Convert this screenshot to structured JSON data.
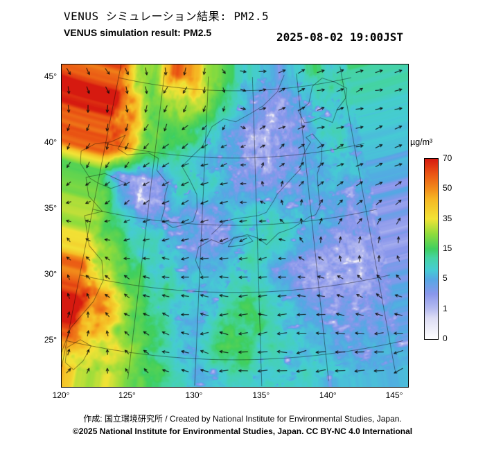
{
  "header": {
    "title_jp": "VENUS シミュレーション結果: PM2.5",
    "subtitle_en": "VENUS simulation result: PM2.5",
    "timestamp": "2025-08-02 19:00JST"
  },
  "colorbar": {
    "unit": "µg/m³",
    "ticks": [
      0,
      1,
      5,
      15,
      35,
      50,
      70
    ],
    "stops": [
      {
        "v": 0,
        "c": "#ffffff"
      },
      {
        "v": 0.7,
        "c": "#dcdcf4"
      },
      {
        "v": 1,
        "c": "#b7bcf0"
      },
      {
        "v": 3,
        "c": "#8a97ec"
      },
      {
        "v": 5,
        "c": "#55a8e4"
      },
      {
        "v": 8,
        "c": "#46ccd4"
      },
      {
        "v": 12,
        "c": "#45d4a4"
      },
      {
        "v": 15,
        "c": "#3fcf5f"
      },
      {
        "v": 25,
        "c": "#8fdc3c"
      },
      {
        "v": 35,
        "c": "#f2e336"
      },
      {
        "v": 45,
        "c": "#f6b623"
      },
      {
        "v": 50,
        "c": "#f28c1b"
      },
      {
        "v": 60,
        "c": "#ea5514"
      },
      {
        "v": 70,
        "c": "#d61a10"
      }
    ]
  },
  "map": {
    "lon_values": [
      120,
      125,
      130,
      135,
      140,
      145
    ],
    "lon_ticks": [
      "120°",
      "125°",
      "130°",
      "135°",
      "140°",
      "145°"
    ],
    "lat_values": [
      25,
      30,
      35,
      40,
      45
    ],
    "lat_ticks": [
      "25°",
      "30°",
      "35°",
      "40°",
      "45°"
    ],
    "extent": {
      "lon_min": 120,
      "lon_max": 146,
      "lat_min": 23,
      "lat_max": 46
    }
  },
  "chart_data": {
    "type": "heatmap",
    "title": "VENUS simulation result: PM2.5",
    "title_jp": "VENUS シミュレーション結果: PM2.5",
    "time": "2025-08-02 19:00JST",
    "unit": "µg/m³",
    "scale_ticks": [
      0,
      1,
      5,
      15,
      35,
      50,
      70
    ],
    "lon": [
      120,
      122,
      124,
      126,
      128,
      130,
      132,
      134,
      136,
      138,
      140,
      142,
      144,
      146
    ],
    "lat": [
      46,
      44,
      42,
      40,
      38,
      36,
      34,
      32,
      30,
      28,
      26,
      24
    ],
    "pm25": [
      [
        55,
        25,
        20,
        55,
        45,
        25,
        15,
        10,
        6,
        4,
        8,
        12,
        9,
        12
      ],
      [
        60,
        35,
        20,
        30,
        30,
        20,
        12,
        6,
        3,
        2,
        4,
        10,
        10,
        10
      ],
      [
        70,
        50,
        22,
        16,
        15,
        10,
        5,
        3,
        2,
        2,
        3,
        8,
        9,
        8
      ],
      [
        65,
        40,
        18,
        12,
        10,
        7,
        5,
        3,
        2,
        3,
        4,
        6,
        7,
        6
      ],
      [
        18,
        4,
        1,
        3,
        11,
        9,
        6,
        4,
        3,
        4,
        5,
        6,
        6,
        5
      ],
      [
        22,
        8,
        1,
        3,
        5,
        3,
        4,
        8,
        8,
        6,
        5,
        5,
        4,
        4
      ],
      [
        28,
        15,
        9,
        7,
        5,
        3,
        3,
        8,
        10,
        8,
        6,
        4,
        3,
        3
      ],
      [
        38,
        22,
        13,
        9,
        7,
        5,
        7,
        9,
        6,
        2,
        2,
        2,
        2,
        2
      ],
      [
        62,
        40,
        18,
        11,
        9,
        7,
        9,
        11,
        7,
        4,
        2,
        2,
        2,
        3
      ],
      [
        70,
        48,
        24,
        14,
        8,
        6,
        10,
        14,
        10,
        6,
        4,
        3,
        3,
        4
      ],
      [
        55,
        38,
        28,
        16,
        9,
        5,
        16,
        14,
        10,
        7,
        5,
        5,
        4,
        5
      ],
      [
        42,
        34,
        26,
        18,
        10,
        6,
        8,
        10,
        9,
        8,
        7,
        6,
        5,
        6
      ]
    ],
    "wind": {
      "lon": [
        120,
        124,
        128,
        132,
        136,
        140,
        144
      ],
      "lat": [
        46,
        42,
        38,
        34,
        30,
        26,
        23
      ],
      "uv": [
        [
          [
            2,
            -2
          ],
          [
            1,
            -3
          ],
          [
            -1,
            -3
          ],
          [
            1,
            -1
          ],
          [
            3,
            0
          ],
          [
            3,
            1
          ],
          [
            3,
            1
          ]
        ],
        [
          [
            1,
            -3
          ],
          [
            -1,
            -3
          ],
          [
            -2,
            -2
          ],
          [
            -1,
            -1
          ],
          [
            2,
            1
          ],
          [
            3,
            1
          ],
          [
            3,
            0
          ]
        ],
        [
          [
            -1,
            -2
          ],
          [
            -2,
            -2
          ],
          [
            -3,
            -2
          ],
          [
            -3,
            -1
          ],
          [
            0,
            1
          ],
          [
            2,
            2
          ],
          [
            3,
            1
          ]
        ],
        [
          [
            -1,
            0
          ],
          [
            -2,
            -1
          ],
          [
            -3,
            -1
          ],
          [
            -4,
            -1
          ],
          [
            -3,
            0
          ],
          [
            0,
            2
          ],
          [
            2,
            2
          ]
        ],
        [
          [
            -1,
            1
          ],
          [
            -2,
            1
          ],
          [
            -3,
            0
          ],
          [
            -4,
            0
          ],
          [
            -4,
            -1
          ],
          [
            -3,
            1
          ],
          [
            -1,
            2
          ]
        ],
        [
          [
            0,
            2
          ],
          [
            -1,
            1
          ],
          [
            -3,
            1
          ],
          [
            -4,
            0
          ],
          [
            -5,
            0
          ],
          [
            -5,
            0
          ],
          [
            -4,
            1
          ]
        ],
        [
          [
            1,
            2
          ],
          [
            0,
            1
          ],
          [
            -2,
            1
          ],
          [
            -4,
            0
          ],
          [
            -5,
            0
          ],
          [
            -5,
            -1
          ],
          [
            -5,
            0
          ]
        ]
      ]
    }
  },
  "coastlines": [
    [
      [
        119.7,
        23.6
      ],
      [
        120.1,
        26.0
      ],
      [
        121.5,
        28.3
      ],
      [
        122.0,
        30.0
      ],
      [
        121.6,
        31.4
      ],
      [
        120.3,
        32.3
      ],
      [
        119.4,
        34.4
      ],
      [
        120.9,
        35.0
      ],
      [
        119.4,
        35.9
      ],
      [
        118.8,
        37.2
      ],
      [
        120.5,
        37.8
      ],
      [
        122.6,
        37.4
      ],
      [
        121.3,
        36.8
      ],
      [
        120.0,
        37.0
      ],
      [
        119.2,
        37.2
      ],
      [
        118.0,
        38.1
      ],
      [
        117.8,
        39.0
      ],
      [
        119.0,
        39.8
      ],
      [
        120.5,
        40.2
      ],
      [
        121.8,
        40.9
      ],
      [
        121.3,
        39.8
      ],
      [
        122.3,
        39.5
      ],
      [
        123.8,
        39.8
      ],
      [
        124.4,
        39.9
      ],
      [
        125.4,
        39.6
      ]
    ],
    [
      [
        125.4,
        39.6
      ],
      [
        125.4,
        38.7
      ],
      [
        126.6,
        37.8
      ],
      [
        126.4,
        36.9
      ],
      [
        126.5,
        36.0
      ],
      [
        126.3,
        35.1
      ],
      [
        127.4,
        34.6
      ],
      [
        128.4,
        34.9
      ],
      [
        129.2,
        35.2
      ],
      [
        129.5,
        36.1
      ],
      [
        129.4,
        37.2
      ],
      [
        128.6,
        38.3
      ],
      [
        127.8,
        39.2
      ],
      [
        128.7,
        40.0
      ],
      [
        129.7,
        40.8
      ],
      [
        130.6,
        42.3
      ],
      [
        131.8,
        42.9
      ],
      [
        133.1,
        42.7
      ],
      [
        134.7,
        43.3
      ],
      [
        136.0,
        43.8
      ],
      [
        137.7,
        44.8
      ],
      [
        138.6,
        46.0
      ]
    ],
    [
      [
        130.2,
        31.2
      ],
      [
        129.6,
        32.3
      ],
      [
        129.8,
        33.3
      ],
      [
        130.9,
        33.9
      ],
      [
        131.9,
        33.6
      ],
      [
        132.8,
        34.0
      ],
      [
        134.1,
        34.3
      ],
      [
        135.1,
        34.0
      ],
      [
        135.8,
        33.5
      ],
      [
        136.9,
        34.3
      ],
      [
        138.2,
        34.6
      ],
      [
        138.9,
        34.9
      ],
      [
        139.8,
        35.3
      ],
      [
        140.4,
        35.4
      ],
      [
        140.9,
        36.0
      ],
      [
        140.9,
        37.2
      ],
      [
        141.0,
        38.4
      ],
      [
        141.6,
        39.4
      ],
      [
        141.8,
        40.5
      ],
      [
        141.0,
        41.4
      ],
      [
        140.3,
        41.2
      ],
      [
        140.7,
        40.8
      ],
      [
        139.9,
        40.0
      ],
      [
        139.4,
        38.9
      ],
      [
        138.5,
        38.3
      ],
      [
        137.4,
        37.5
      ],
      [
        137.0,
        37.2
      ],
      [
        136.7,
        36.8
      ],
      [
        135.9,
        35.9
      ],
      [
        135.2,
        35.7
      ],
      [
        134.2,
        35.6
      ],
      [
        133.1,
        35.5
      ],
      [
        132.1,
        35.3
      ],
      [
        131.4,
        34.7
      ],
      [
        130.9,
        34.3
      ]
    ],
    [
      [
        140.3,
        42.3
      ],
      [
        139.8,
        43.2
      ],
      [
        141.0,
        43.7
      ],
      [
        141.6,
        44.9
      ],
      [
        142.8,
        45.4
      ],
      [
        144.2,
        44.9
      ],
      [
        145.3,
        44.3
      ],
      [
        145.0,
        43.6
      ],
      [
        143.9,
        42.9
      ],
      [
        143.2,
        42.0
      ],
      [
        142.0,
        42.5
      ],
      [
        140.9,
        42.3
      ],
      [
        140.3,
        42.3
      ]
    ],
    [
      [
        132.4,
        33.4
      ],
      [
        133.6,
        33.5
      ],
      [
        134.6,
        33.8
      ],
      [
        134.2,
        34.2
      ],
      [
        132.9,
        34.1
      ],
      [
        132.4,
        33.4
      ]
    ],
    [
      [
        121.0,
        25.3
      ],
      [
        121.9,
        25.0
      ],
      [
        121.5,
        23.8
      ],
      [
        120.9,
        23.0
      ],
      [
        120.2,
        23.4
      ],
      [
        120.1,
        24.5
      ],
      [
        121.0,
        25.3
      ]
    ]
  ],
  "footer": {
    "line1": "作成: 国立環境研究所 / Created by National Institute for Environmental Studies, Japan.",
    "line2": "©2025 National Institute for Environmental Studies, Japan. CC BY-NC 4.0 International"
  }
}
